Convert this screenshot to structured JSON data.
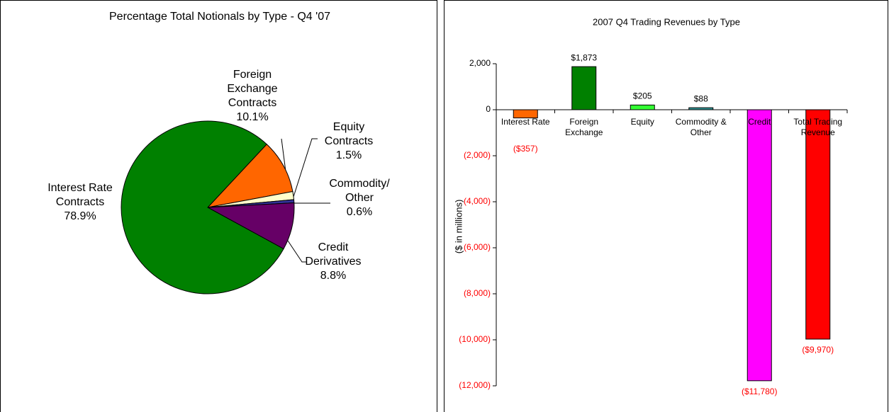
{
  "chart_data": [
    {
      "type": "pie",
      "title": "Percentage Total Notionals by Type - Q4 '07",
      "categories": [
        "Foreign Exchange Contracts",
        "Equity Contracts",
        "Commodity/ Other",
        "Credit Derivatives",
        "Interest Rate Contracts"
      ],
      "values": [
        10.1,
        1.5,
        0.6,
        8.8,
        78.9
      ],
      "value_labels": [
        "10.1%",
        "1.5%",
        "0.6%",
        "8.8%",
        "78.9%"
      ],
      "colors": [
        "#ff6600",
        "#ffffcc",
        "#333399",
        "#660066",
        "#008000"
      ]
    },
    {
      "type": "bar",
      "title": "2007 Q4 Trading Revenues by Type",
      "y_label": "($ in millions)",
      "categories": [
        "Interest Rate",
        "Foreign Exchange",
        "Equity",
        "Commodity & Other",
        "Credit",
        "Total Trading Revenue"
      ],
      "values": [
        -357,
        1873,
        205,
        88,
        -11780,
        -9970
      ],
      "value_labels": [
        "($357)",
        "$1,873",
        "$205",
        "$88",
        "($11,780)",
        "($9,970)"
      ],
      "colors": [
        "#ff6600",
        "#008000",
        "#33ff33",
        "#339999",
        "#ff00ff",
        "#ff0000"
      ],
      "negative_color": "#ff0000",
      "ylim": [
        -12000,
        2000
      ],
      "yticks": [
        {
          "value": -12000,
          "label": "(12,000)"
        },
        {
          "value": -10000,
          "label": "(10,000)"
        },
        {
          "value": -8000,
          "label": "(8,000)"
        },
        {
          "value": -6000,
          "label": "(6,000)"
        },
        {
          "value": -4000,
          "label": "(4,000)"
        },
        {
          "value": -2000,
          "label": "(2,000)"
        },
        0,
        {
          "value": 2000,
          "label": "2,000"
        }
      ]
    }
  ]
}
